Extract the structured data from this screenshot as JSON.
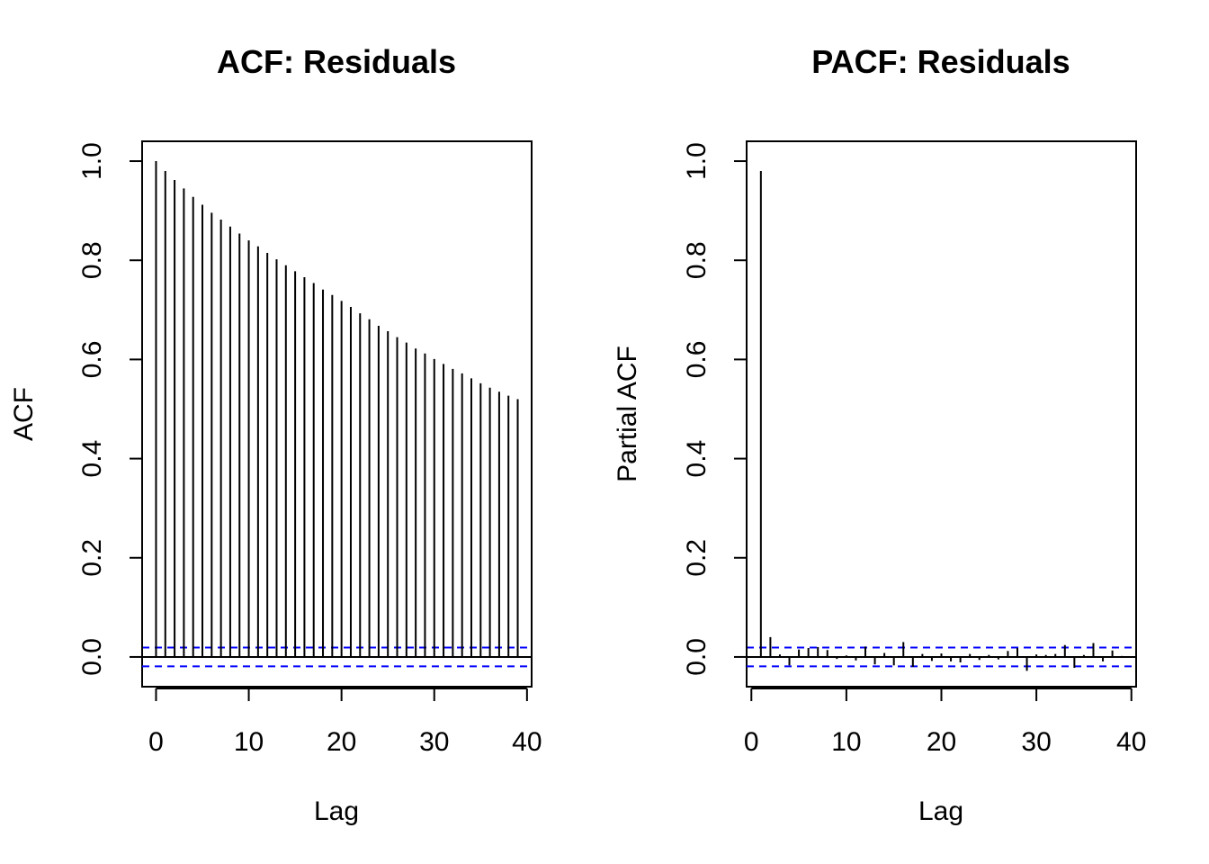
{
  "chart_data": [
    {
      "type": "bar",
      "title": "ACF: Residuals",
      "xlabel": "Lag",
      "ylabel": "ACF",
      "xlim": [
        -1.5,
        40.5
      ],
      "ylim": [
        -0.06,
        1.04
      ],
      "x_ticks": [
        0,
        10,
        20,
        30,
        40
      ],
      "y_ticks": [
        0.0,
        0.2,
        0.4,
        0.6,
        0.8,
        1.0
      ],
      "y_tick_labels": [
        "0.0",
        "0.2",
        "0.4",
        "0.6",
        "0.8",
        "1.0"
      ],
      "confidence_bounds": [
        0.019,
        -0.019
      ],
      "bound_color": "#0000ff",
      "lags": [
        0,
        1,
        2,
        3,
        4,
        5,
        6,
        7,
        8,
        9,
        10,
        11,
        12,
        13,
        14,
        15,
        16,
        17,
        18,
        19,
        20,
        21,
        22,
        23,
        24,
        25,
        26,
        27,
        28,
        29,
        30,
        31,
        32,
        33,
        34,
        35,
        36,
        37,
        38,
        39
      ],
      "values": [
        1.0,
        0.98,
        0.962,
        0.945,
        0.928,
        0.912,
        0.896,
        0.882,
        0.868,
        0.854,
        0.84,
        0.828,
        0.815,
        0.802,
        0.79,
        0.778,
        0.766,
        0.754,
        0.741,
        0.73,
        0.718,
        0.706,
        0.693,
        0.681,
        0.668,
        0.657,
        0.645,
        0.634,
        0.622,
        0.612,
        0.601,
        0.591,
        0.581,
        0.572,
        0.562,
        0.552,
        0.543,
        0.535,
        0.527,
        0.52
      ]
    },
    {
      "type": "bar",
      "title": "PACF: Residuals",
      "xlabel": "Lag",
      "ylabel": "Partial ACF",
      "xlim": [
        -0.5,
        40.5
      ],
      "ylim": [
        -0.06,
        1.04
      ],
      "x_ticks": [
        0,
        10,
        20,
        30,
        40
      ],
      "y_ticks": [
        0.0,
        0.2,
        0.4,
        0.6,
        0.8,
        1.0
      ],
      "y_tick_labels": [
        "0.0",
        "0.2",
        "0.4",
        "0.6",
        "0.8",
        "1.0"
      ],
      "confidence_bounds": [
        0.019,
        -0.019
      ],
      "bound_color": "#0000ff",
      "lags": [
        1,
        2,
        3,
        4,
        5,
        6,
        7,
        8,
        9,
        10,
        11,
        12,
        13,
        14,
        15,
        16,
        17,
        18,
        19,
        20,
        21,
        22,
        23,
        24,
        25,
        26,
        27,
        28,
        29,
        30,
        31,
        32,
        33,
        34,
        35,
        36,
        37,
        38,
        39
      ],
      "values": [
        0.98,
        0.04,
        0.005,
        -0.017,
        0.015,
        0.018,
        0.02,
        0.014,
        -0.004,
        0.003,
        -0.007,
        0.021,
        -0.015,
        0.008,
        -0.017,
        0.03,
        -0.02,
        0.006,
        -0.008,
        0.007,
        -0.009,
        -0.011,
        0.006,
        -0.006,
        0.004,
        -0.005,
        0.012,
        0.018,
        -0.028,
        0.005,
        0.004,
        0.006,
        0.024,
        -0.022,
        0.004,
        0.028,
        -0.009,
        0.013,
        0.002
      ]
    }
  ]
}
